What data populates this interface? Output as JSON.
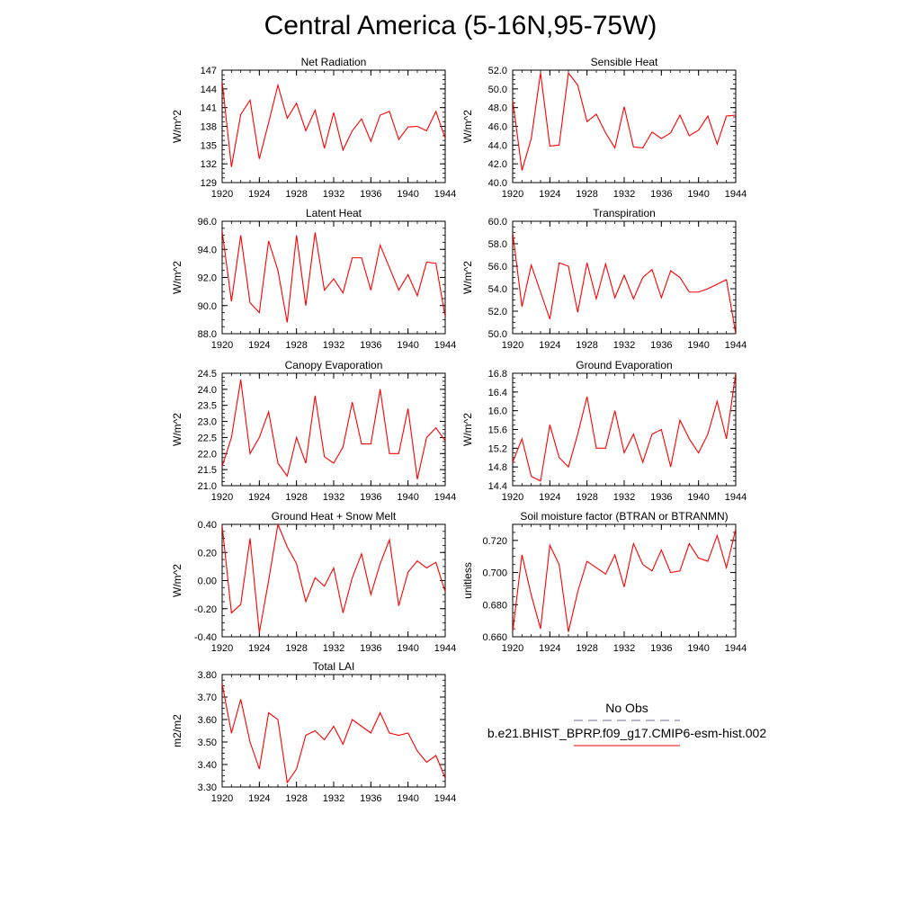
{
  "title": "Central America (5-16N,95-75W)",
  "colors": {
    "series": "#ff0000",
    "axis": "#000000",
    "obs": "#6b6b9a"
  },
  "legend": {
    "obs_label": "No Obs",
    "model_label": "b.e21.BHIST_BPRP.f09_g17.CMIP6-esm-hist.002"
  },
  "chart_data": [
    {
      "type": "line",
      "title": "Net Radiation",
      "ylabel": "W/m^2",
      "xlim": [
        1920,
        1944
      ],
      "ylim": [
        129,
        147
      ],
      "xticks": [
        1920,
        1924,
        1928,
        1932,
        1936,
        1940,
        1944
      ],
      "xtick_labels": [
        "1920",
        "1924",
        "1928",
        "1932",
        "1936",
        "1940",
        "1944"
      ],
      "yticks": [
        129,
        132,
        135,
        138,
        141,
        144,
        147
      ],
      "ytick_labels": [
        "129",
        "132",
        "135",
        "138",
        "141",
        "144",
        "147"
      ],
      "x": [
        1920,
        1921,
        1922,
        1923,
        1924,
        1925,
        1926,
        1927,
        1928,
        1929,
        1930,
        1931,
        1932,
        1933,
        1934,
        1935,
        1936,
        1937,
        1938,
        1939,
        1940,
        1941,
        1942,
        1943,
        1944
      ],
      "values": [
        145.2,
        131.5,
        139.9,
        142.2,
        132.8,
        138.6,
        144.6,
        139.3,
        141.7,
        137.3,
        140.6,
        134.5,
        140.2,
        134.2,
        137.3,
        139.2,
        135.6,
        139.8,
        140.4,
        135.9,
        137.9,
        138.0,
        137.3,
        140.4,
        136.1
      ]
    },
    {
      "type": "line",
      "title": "Sensible Heat",
      "ylabel": "W/m^2",
      "xlim": [
        1920,
        1944
      ],
      "ylim": [
        40.0,
        52.0
      ],
      "xticks": [
        1920,
        1924,
        1928,
        1932,
        1936,
        1940,
        1944
      ],
      "xtick_labels": [
        "1920",
        "1924",
        "1928",
        "1932",
        "1936",
        "1940",
        "1944"
      ],
      "yticks": [
        40,
        42,
        44,
        46,
        48,
        50,
        52
      ],
      "ytick_labels": [
        "40.0",
        "42.0",
        "44.0",
        "46.0",
        "48.0",
        "50.0",
        "52.0"
      ],
      "x": [
        1920,
        1921,
        1922,
        1923,
        1924,
        1925,
        1926,
        1927,
        1928,
        1929,
        1930,
        1931,
        1932,
        1933,
        1934,
        1935,
        1936,
        1937,
        1938,
        1939,
        1940,
        1941,
        1942,
        1943,
        1944
      ],
      "values": [
        48.8,
        41.3,
        44.7,
        51.7,
        43.9,
        44.0,
        51.7,
        50.4,
        46.5,
        47.3,
        45.3,
        43.7,
        48.1,
        43.8,
        43.7,
        45.4,
        44.7,
        45.3,
        47.2,
        45.0,
        45.6,
        47.1,
        44.1,
        47.1,
        47.2
      ]
    },
    {
      "type": "line",
      "title": "Latent Heat",
      "ylabel": "W/m^2",
      "xlim": [
        1920,
        1944
      ],
      "ylim": [
        88.0,
        96.0
      ],
      "xticks": [
        1920,
        1924,
        1928,
        1932,
        1936,
        1940,
        1944
      ],
      "xtick_labels": [
        "1920",
        "1924",
        "1928",
        "1932",
        "1936",
        "1940",
        "1944"
      ],
      "yticks": [
        88,
        90,
        92,
        94,
        96
      ],
      "ytick_labels": [
        "88.0",
        "90.0",
        "92.0",
        "94.0",
        "96.0"
      ],
      "x": [
        1920,
        1921,
        1922,
        1923,
        1924,
        1925,
        1926,
        1927,
        1928,
        1929,
        1930,
        1931,
        1932,
        1933,
        1934,
        1935,
        1936,
        1937,
        1938,
        1939,
        1940,
        1941,
        1942,
        1943,
        1944
      ],
      "values": [
        95.3,
        90.3,
        95.0,
        90.2,
        89.5,
        94.6,
        92.5,
        88.8,
        95.0,
        90.0,
        95.2,
        91.1,
        91.9,
        90.9,
        93.4,
        93.4,
        91.1,
        94.3,
        92.7,
        91.1,
        92.2,
        90.7,
        93.1,
        93.0,
        89.2
      ]
    },
    {
      "type": "line",
      "title": "Transpiration",
      "ylabel": "W/m^2",
      "xlim": [
        1920,
        1944
      ],
      "ylim": [
        50.0,
        60.0
      ],
      "xticks": [
        1920,
        1924,
        1928,
        1932,
        1936,
        1940,
        1944
      ],
      "xtick_labels": [
        "1920",
        "1924",
        "1928",
        "1932",
        "1936",
        "1940",
        "1944"
      ],
      "yticks": [
        50,
        52,
        54,
        56,
        58,
        60
      ],
      "ytick_labels": [
        "50.0",
        "52.0",
        "54.0",
        "56.0",
        "58.0",
        "60.0"
      ],
      "x": [
        1920,
        1921,
        1922,
        1923,
        1924,
        1925,
        1926,
        1927,
        1928,
        1929,
        1930,
        1931,
        1932,
        1933,
        1934,
        1935,
        1936,
        1937,
        1938,
        1939,
        1940,
        1941,
        1942,
        1943,
        1944
      ],
      "values": [
        59.0,
        52.4,
        56.1,
        53.7,
        51.3,
        56.3,
        56.0,
        51.9,
        56.3,
        53.1,
        56.2,
        53.2,
        55.2,
        53.1,
        55.0,
        55.7,
        53.2,
        55.6,
        55.0,
        53.7,
        53.7,
        54.0,
        54.4,
        54.8,
        50.0
      ]
    },
    {
      "type": "line",
      "title": "Canopy Evaporation",
      "ylabel": "W/m^2",
      "xlim": [
        1920,
        1944
      ],
      "ylim": [
        21.0,
        24.5
      ],
      "xticks": [
        1920,
        1924,
        1928,
        1932,
        1936,
        1940,
        1944
      ],
      "xtick_labels": [
        "1920",
        "1924",
        "1928",
        "1932",
        "1936",
        "1940",
        "1944"
      ],
      "yticks": [
        21.0,
        21.5,
        22.0,
        22.5,
        23.0,
        23.5,
        24.0,
        24.5
      ],
      "ytick_labels": [
        "21.0",
        "21.5",
        "22.0",
        "22.5",
        "23.0",
        "23.5",
        "24.0",
        "24.5"
      ],
      "x": [
        1920,
        1921,
        1922,
        1923,
        1924,
        1925,
        1926,
        1927,
        1928,
        1929,
        1930,
        1931,
        1932,
        1933,
        1934,
        1935,
        1936,
        1937,
        1938,
        1939,
        1940,
        1941,
        1942,
        1943,
        1944
      ],
      "values": [
        21.6,
        22.5,
        24.3,
        22.0,
        22.5,
        23.3,
        21.7,
        21.3,
        22.5,
        21.7,
        23.8,
        21.9,
        21.7,
        22.2,
        23.6,
        22.3,
        22.3,
        24.0,
        22.0,
        22.0,
        23.4,
        21.2,
        22.5,
        22.8,
        22.4
      ]
    },
    {
      "type": "line",
      "title": "Ground Evaporation",
      "ylabel": "W/m^2",
      "xlim": [
        1920,
        1944
      ],
      "ylim": [
        14.4,
        16.8
      ],
      "xticks": [
        1920,
        1924,
        1928,
        1932,
        1936,
        1940,
        1944
      ],
      "xtick_labels": [
        "1920",
        "1924",
        "1928",
        "1932",
        "1936",
        "1940",
        "1944"
      ],
      "yticks": [
        14.4,
        14.8,
        15.2,
        15.6,
        16.0,
        16.4,
        16.8
      ],
      "ytick_labels": [
        "14.4",
        "14.8",
        "15.2",
        "15.6",
        "16.0",
        "16.4",
        "16.8"
      ],
      "x": [
        1920,
        1921,
        1922,
        1923,
        1924,
        1925,
        1926,
        1927,
        1928,
        1929,
        1930,
        1931,
        1932,
        1933,
        1934,
        1935,
        1936,
        1937,
        1938,
        1939,
        1940,
        1941,
        1942,
        1943,
        1944
      ],
      "values": [
        14.9,
        15.4,
        14.6,
        14.5,
        15.7,
        15.0,
        14.8,
        15.5,
        16.3,
        15.2,
        15.2,
        16.0,
        15.1,
        15.5,
        14.9,
        15.5,
        15.6,
        14.8,
        15.8,
        15.4,
        15.1,
        15.5,
        16.2,
        15.4,
        16.8
      ]
    },
    {
      "type": "line",
      "title": "Ground Heat + Snow Melt",
      "ylabel": "W/m^2",
      "xlim": [
        1920,
        1944
      ],
      "ylim": [
        -0.4,
        0.4
      ],
      "xticks": [
        1920,
        1924,
        1928,
        1932,
        1936,
        1940,
        1944
      ],
      "xtick_labels": [
        "1920",
        "1924",
        "1928",
        "1932",
        "1936",
        "1940",
        "1944"
      ],
      "yticks": [
        -0.4,
        -0.2,
        0.0,
        0.2,
        0.4
      ],
      "ytick_labels": [
        "-0.40",
        "-0.20",
        "0.00",
        "0.20",
        "0.40"
      ],
      "x": [
        1920,
        1921,
        1922,
        1923,
        1924,
        1925,
        1926,
        1927,
        1928,
        1929,
        1930,
        1931,
        1932,
        1933,
        1934,
        1935,
        1936,
        1937,
        1938,
        1939,
        1940,
        1941,
        1942,
        1943,
        1944
      ],
      "values": [
        0.39,
        -0.23,
        -0.17,
        0.3,
        -0.37,
        0.0,
        0.4,
        0.24,
        0.12,
        -0.15,
        0.02,
        -0.04,
        0.09,
        -0.23,
        0.02,
        0.19,
        -0.1,
        0.12,
        0.29,
        -0.18,
        0.06,
        0.14,
        0.09,
        0.13,
        -0.08
      ]
    },
    {
      "type": "line",
      "title": "Soil moisture factor (BTRAN or BTRANMN)",
      "ylabel": "unitless",
      "xlim": [
        1920,
        1944
      ],
      "ylim": [
        0.66,
        0.73
      ],
      "xticks": [
        1920,
        1924,
        1928,
        1932,
        1936,
        1940,
        1944
      ],
      "xtick_labels": [
        "1920",
        "1924",
        "1928",
        "1932",
        "1936",
        "1940",
        "1944"
      ],
      "yticks": [
        0.66,
        0.68,
        0.7,
        0.72
      ],
      "ytick_labels": [
        "0.660",
        "0.680",
        "0.700",
        "0.720"
      ],
      "x": [
        1920,
        1921,
        1922,
        1923,
        1924,
        1925,
        1926,
        1927,
        1928,
        1929,
        1930,
        1931,
        1932,
        1933,
        1934,
        1935,
        1936,
        1937,
        1938,
        1939,
        1940,
        1941,
        1942,
        1943,
        1944
      ],
      "values": [
        0.663,
        0.711,
        0.686,
        0.665,
        0.717,
        0.705,
        0.663,
        0.688,
        0.707,
        0.703,
        0.699,
        0.711,
        0.691,
        0.718,
        0.705,
        0.701,
        0.714,
        0.7,
        0.701,
        0.718,
        0.709,
        0.707,
        0.723,
        0.703,
        0.727
      ]
    },
    {
      "type": "line",
      "title": "Total LAI",
      "ylabel": "m2/m2",
      "xlim": [
        1920,
        1944
      ],
      "ylim": [
        3.3,
        3.8
      ],
      "xticks": [
        1920,
        1924,
        1928,
        1932,
        1936,
        1940,
        1944
      ],
      "xtick_labels": [
        "1920",
        "1924",
        "1928",
        "1932",
        "1936",
        "1940",
        "1944"
      ],
      "yticks": [
        3.3,
        3.4,
        3.5,
        3.6,
        3.7,
        3.8
      ],
      "ytick_labels": [
        "3.30",
        "3.40",
        "3.50",
        "3.60",
        "3.70",
        "3.80"
      ],
      "x": [
        1920,
        1921,
        1922,
        1923,
        1924,
        1925,
        1926,
        1927,
        1928,
        1929,
        1930,
        1931,
        1932,
        1933,
        1934,
        1935,
        1936,
        1937,
        1938,
        1939,
        1940,
        1941,
        1942,
        1943,
        1944
      ],
      "values": [
        3.76,
        3.54,
        3.69,
        3.5,
        3.38,
        3.63,
        3.6,
        3.32,
        3.38,
        3.53,
        3.55,
        3.51,
        3.57,
        3.49,
        3.6,
        3.57,
        3.54,
        3.63,
        3.54,
        3.53,
        3.54,
        3.46,
        3.41,
        3.44,
        3.34
      ]
    }
  ]
}
